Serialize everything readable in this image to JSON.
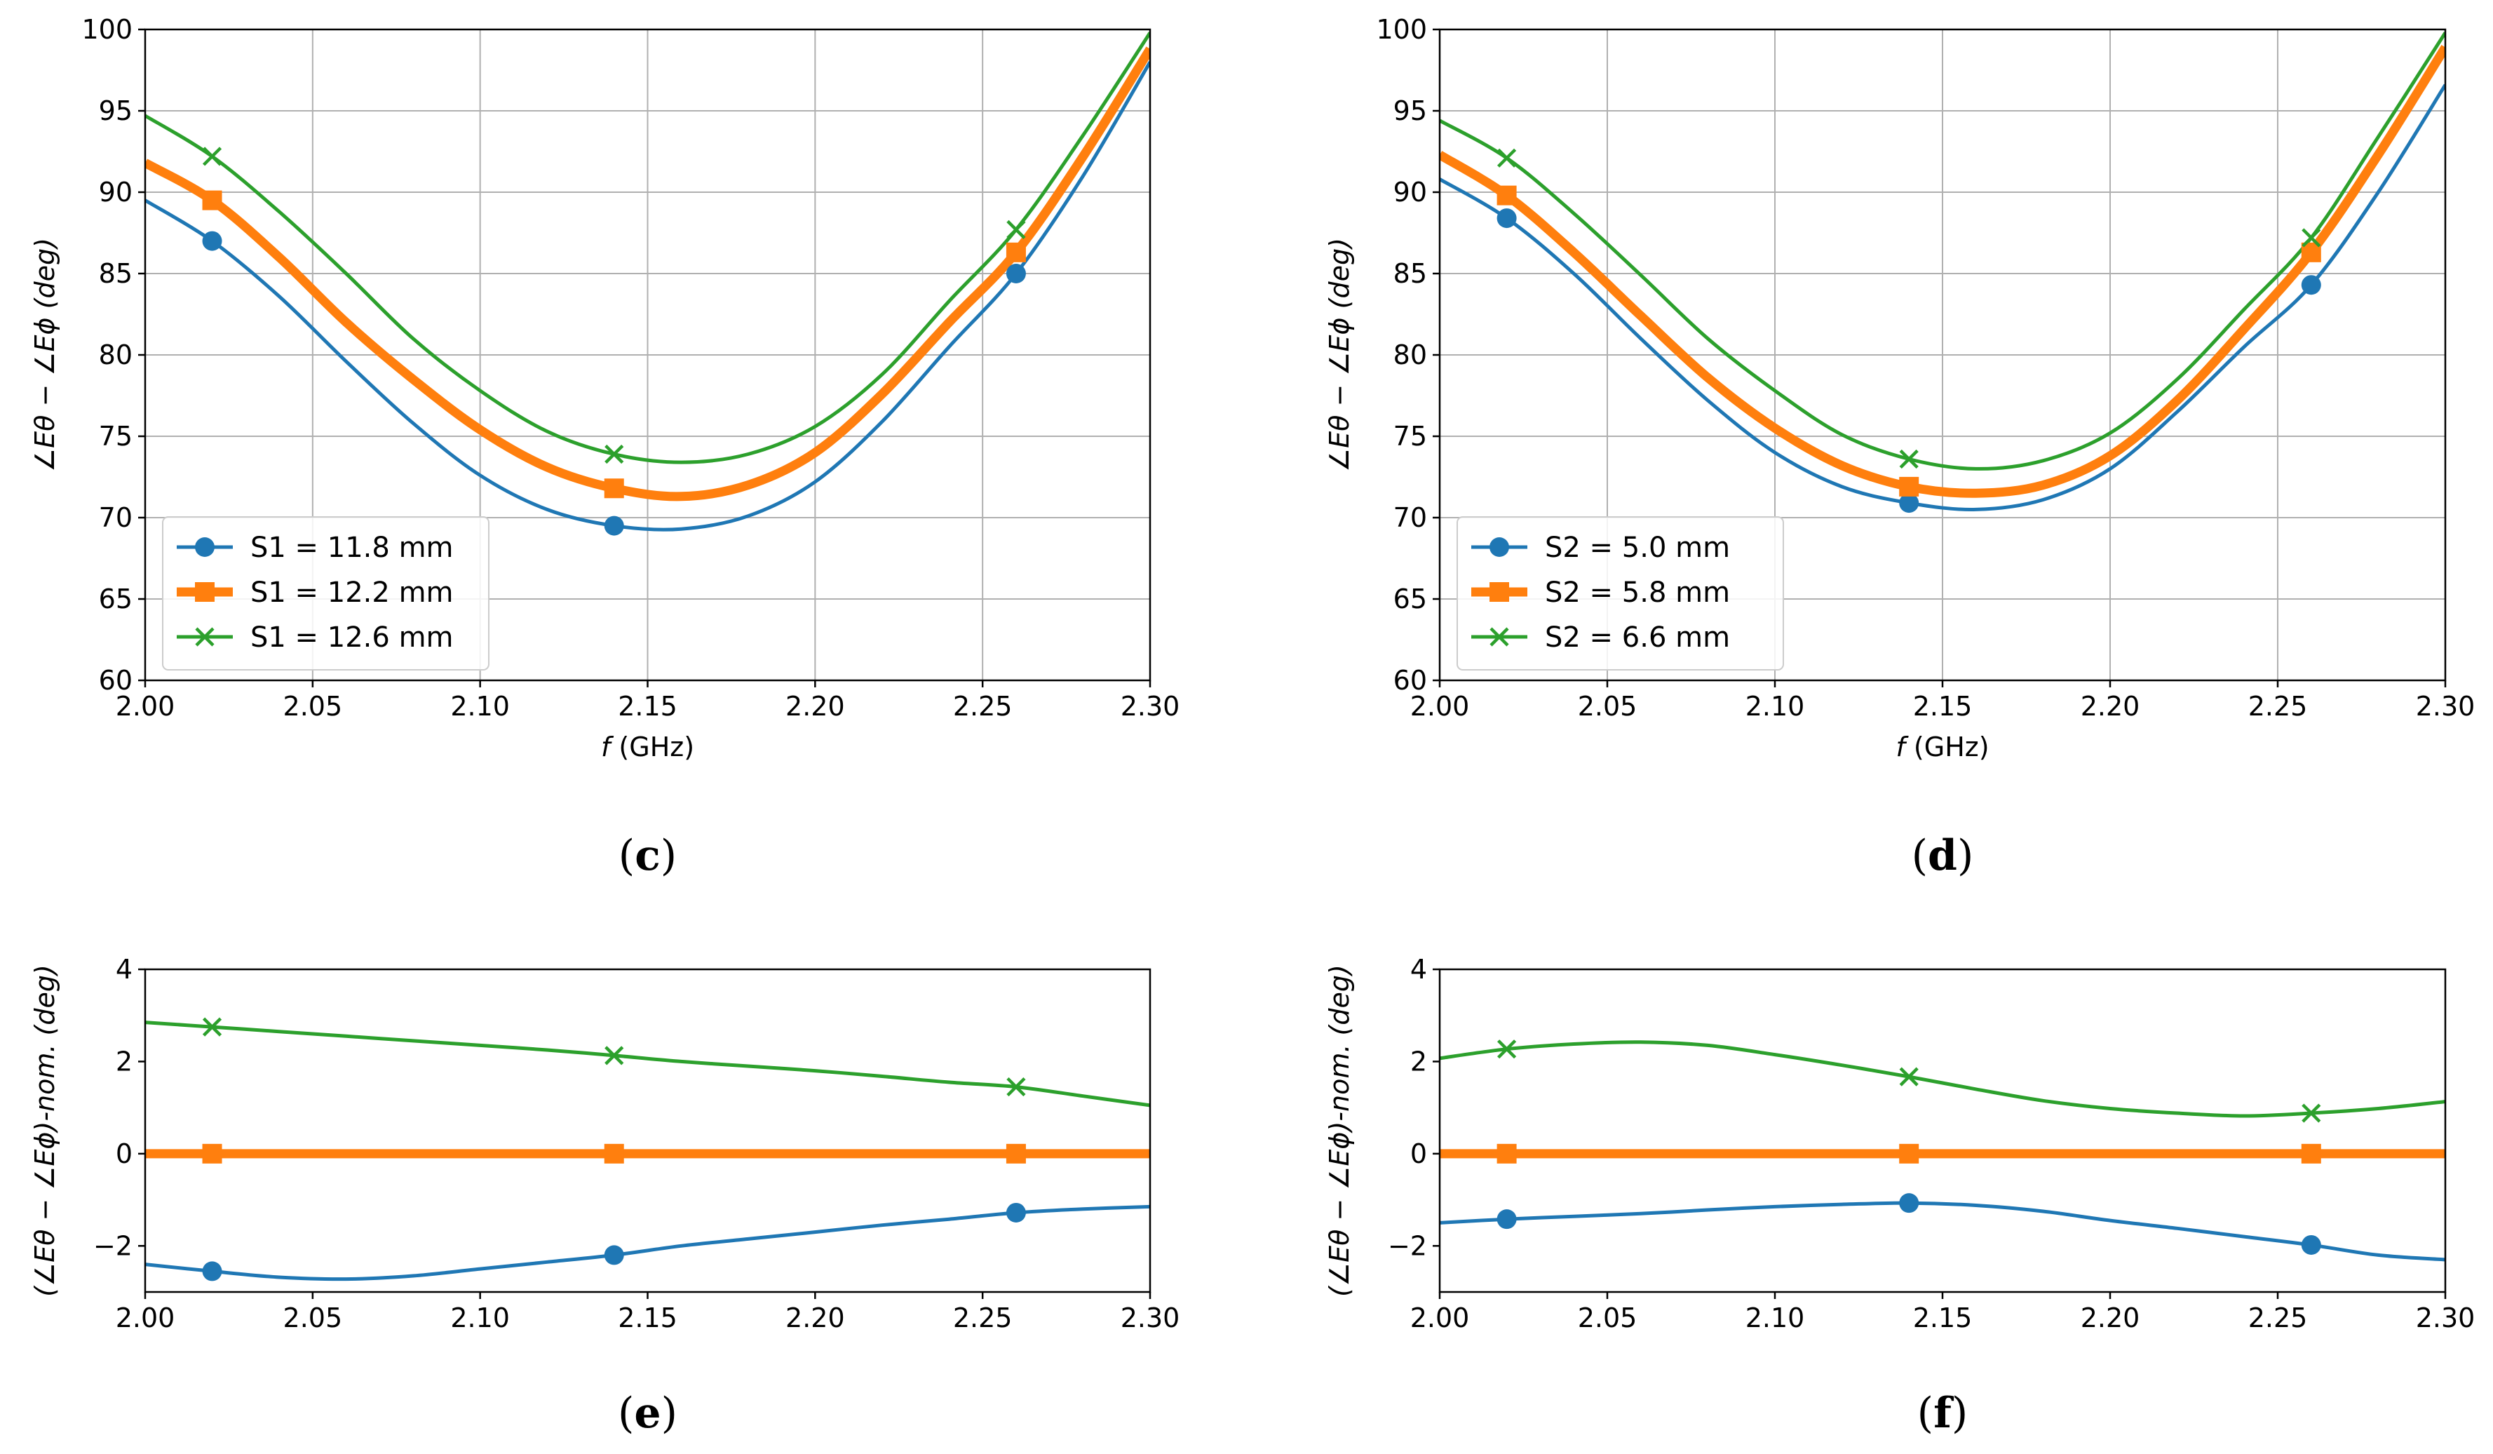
{
  "figure": {
    "styles": [
      {
        "color": "#1f77b4",
        "marker": "circle",
        "width": 5
      },
      {
        "color": "#ff7f0e",
        "marker": "square",
        "width": 13
      },
      {
        "color": "#2ca02c",
        "marker": "x",
        "width": 5
      }
    ]
  },
  "chart_data": [
    {
      "id": "c",
      "type": "line",
      "caption_letter": "c",
      "xlabel_italic": "f",
      "xlabel_unit": " (GHz)",
      "ylabel": "∠Eθ − ∠Eϕ   (deg)",
      "xlim": [
        2.0,
        2.3
      ],
      "ylim": [
        60,
        100
      ],
      "xticks": [
        "2.00",
        "2.05",
        "2.10",
        "2.15",
        "2.20",
        "2.25",
        "2.30"
      ],
      "yticks": [
        "60",
        "65",
        "70",
        "75",
        "80",
        "85",
        "90",
        "95",
        "100"
      ],
      "grid": true,
      "legend_location": "lower-left",
      "x": [
        2.0,
        2.02,
        2.04,
        2.06,
        2.08,
        2.1,
        2.12,
        2.14,
        2.16,
        2.18,
        2.2,
        2.22,
        2.24,
        2.26,
        2.28,
        2.3
      ],
      "marker_x": [
        2.02,
        2.14,
        2.26
      ],
      "series": [
        {
          "name": "S1 = 11.8 mm",
          "values": [
            89.5,
            87.0,
            83.6,
            79.6,
            75.8,
            72.6,
            70.5,
            69.5,
            69.3,
            70.1,
            72.2,
            75.9,
            80.5,
            85.0,
            91.0,
            98.0
          ]
        },
        {
          "name": "S1 = 12.2 mm",
          "values": [
            91.8,
            89.5,
            86.0,
            82.0,
            78.5,
            75.4,
            73.1,
            71.8,
            71.3,
            72.0,
            74.0,
            77.6,
            82.0,
            86.3,
            92.2,
            98.8
          ]
        },
        {
          "name": "S1 = 12.6 mm",
          "values": [
            94.7,
            92.2,
            88.8,
            85.0,
            81.0,
            77.8,
            75.3,
            73.9,
            73.4,
            73.9,
            75.6,
            78.8,
            83.3,
            87.7,
            93.5,
            99.8
          ]
        }
      ]
    },
    {
      "id": "d",
      "type": "line",
      "caption_letter": "d",
      "xlabel_italic": "f",
      "xlabel_unit": " (GHz)",
      "ylabel": "∠Eθ − ∠Eϕ   (deg)",
      "xlim": [
        2.0,
        2.3
      ],
      "ylim": [
        60,
        100
      ],
      "xticks": [
        "2.00",
        "2.05",
        "2.10",
        "2.15",
        "2.20",
        "2.25",
        "2.30"
      ],
      "yticks": [
        "60",
        "65",
        "70",
        "75",
        "80",
        "85",
        "90",
        "95",
        "100"
      ],
      "grid": true,
      "legend_location": "lower-left",
      "x": [
        2.0,
        2.02,
        2.04,
        2.06,
        2.08,
        2.1,
        2.12,
        2.14,
        2.16,
        2.18,
        2.2,
        2.22,
        2.24,
        2.26,
        2.28,
        2.3
      ],
      "marker_x": [
        2.02,
        2.14,
        2.26
      ],
      "series": [
        {
          "name": "S2 = 5.0 mm",
          "values": [
            90.8,
            88.4,
            85.0,
            81.0,
            77.2,
            74.0,
            71.9,
            70.9,
            70.5,
            71.1,
            73.0,
            76.5,
            80.5,
            84.3,
            90.0,
            96.6
          ]
        },
        {
          "name": "S2 = 5.8 mm",
          "values": [
            92.3,
            89.8,
            86.3,
            82.4,
            78.6,
            75.5,
            73.2,
            71.9,
            71.5,
            72.0,
            73.8,
            77.2,
            81.6,
            86.3,
            92.3,
            98.9
          ]
        },
        {
          "name": "S2 = 6.6 mm",
          "values": [
            94.4,
            92.1,
            88.7,
            84.9,
            81.0,
            77.8,
            75.1,
            73.6,
            73.0,
            73.5,
            75.2,
            78.5,
            82.8,
            87.2,
            93.4,
            99.8
          ]
        }
      ]
    },
    {
      "id": "e",
      "type": "line",
      "caption_letter": "e",
      "ylabel": "(∠Eθ − ∠Eϕ)-nom. (deg)",
      "xlim": [
        2.0,
        2.3
      ],
      "ylim": [
        -3,
        4
      ],
      "xticks": [
        "2.00",
        "2.05",
        "2.10",
        "2.15",
        "2.20",
        "2.25",
        "2.30"
      ],
      "yticks": [
        "−2",
        "0",
        "2",
        "4"
      ],
      "ytick_values": [
        -2,
        0,
        2,
        4
      ],
      "grid": false,
      "x": [
        2.0,
        2.02,
        2.04,
        2.06,
        2.08,
        2.1,
        2.12,
        2.14,
        2.16,
        2.18,
        2.2,
        2.22,
        2.24,
        2.26,
        2.28,
        2.3
      ],
      "marker_x": [
        2.02,
        2.14,
        2.26
      ],
      "series": [
        {
          "name": "S1 = 11.8 mm",
          "values": [
            -2.4,
            -2.55,
            -2.68,
            -2.72,
            -2.65,
            -2.5,
            -2.35,
            -2.2,
            -2.0,
            -1.85,
            -1.7,
            -1.55,
            -1.42,
            -1.28,
            -1.2,
            -1.15
          ]
        },
        {
          "name": "S1 = 12.2 mm",
          "values": [
            0,
            0,
            0,
            0,
            0,
            0,
            0,
            0,
            0,
            0,
            0,
            0,
            0,
            0,
            0,
            0
          ]
        },
        {
          "name": "S1 = 12.6 mm",
          "values": [
            2.85,
            2.75,
            2.65,
            2.55,
            2.45,
            2.35,
            2.25,
            2.13,
            2.0,
            1.9,
            1.8,
            1.68,
            1.55,
            1.45,
            1.25,
            1.05
          ]
        }
      ]
    },
    {
      "id": "f",
      "type": "line",
      "caption_letter": "f",
      "ylabel": "(∠Eθ − ∠Eϕ)-nom. (deg)",
      "xlim": [
        2.0,
        2.3
      ],
      "ylim": [
        -3,
        4
      ],
      "xticks": [
        "2.00",
        "2.05",
        "2.10",
        "2.15",
        "2.20",
        "2.25",
        "2.30"
      ],
      "yticks": [
        "−2",
        "0",
        "2",
        "4"
      ],
      "ytick_values": [
        -2,
        0,
        2,
        4
      ],
      "grid": false,
      "x": [
        2.0,
        2.02,
        2.04,
        2.06,
        2.08,
        2.1,
        2.12,
        2.14,
        2.16,
        2.18,
        2.2,
        2.22,
        2.24,
        2.26,
        2.28,
        2.3
      ],
      "marker_x": [
        2.02,
        2.14,
        2.26
      ],
      "series": [
        {
          "name": "S2 = 5.0 mm",
          "values": [
            -1.5,
            -1.42,
            -1.36,
            -1.3,
            -1.22,
            -1.15,
            -1.1,
            -1.07,
            -1.12,
            -1.25,
            -1.45,
            -1.62,
            -1.8,
            -1.98,
            -2.2,
            -2.3
          ]
        },
        {
          "name": "S2 = 5.8 mm",
          "values": [
            0,
            0,
            0,
            0,
            0,
            0,
            0,
            0,
            0,
            0,
            0,
            0,
            0,
            0,
            0,
            0
          ]
        },
        {
          "name": "S2 = 6.6 mm",
          "values": [
            2.07,
            2.27,
            2.38,
            2.42,
            2.35,
            2.15,
            1.92,
            1.67,
            1.4,
            1.15,
            0.98,
            0.88,
            0.82,
            0.88,
            0.98,
            1.13
          ]
        }
      ]
    }
  ]
}
